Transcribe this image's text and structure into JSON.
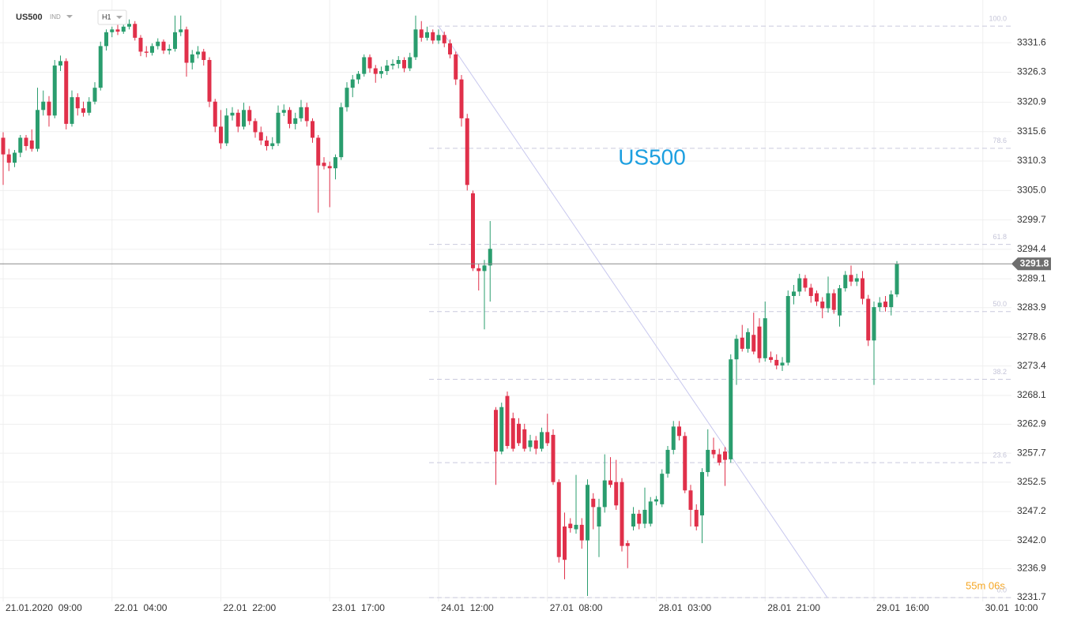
{
  "chart_data": {
    "type": "candlestick",
    "symbol": "US500",
    "market_tag": "IND",
    "interval": "H1",
    "timer": "55m 06s",
    "up_color": "#2a9d6e",
    "down_color": "#e0304a",
    "ylim": [
      3231.0,
      3339.3
    ],
    "yticks": [
      3331.6,
      3326.3,
      3320.9,
      3315.6,
      3310.3,
      {
        "value": 3305,
        "label": "3305.0"
      },
      3299.7,
      3294.4,
      3289.1,
      3283.9,
      3278.6,
      3273.4,
      3268.1,
      3262.9,
      3257.7,
      3252.5,
      3247.2,
      {
        "value": 3242,
        "label": "3242.0"
      },
      3236.9,
      3231.7
    ],
    "grid": true,
    "fib_levels": [
      {
        "value": 3334.6,
        "label": "100.0"
      },
      {
        "value": 3312.6,
        "label": "78.6"
      },
      {
        "value": 3295.3,
        "label": "61.8"
      },
      {
        "value": 3283.2,
        "label": "50.0"
      },
      {
        "value": 3271.0,
        "label": "38.2"
      },
      {
        "value": 3256.0,
        "label": "23.6"
      },
      {
        "value": 3231.7,
        "label": "0.0"
      }
    ],
    "categories": [
      "21.01.2020  09:00",
      null,
      null,
      null,
      null,
      null,
      null,
      null,
      null,
      null,
      null,
      null,
      null,
      null,
      null,
      null,
      null,
      null,
      null,
      "22.01  04:00",
      null,
      null,
      null,
      null,
      null,
      null,
      null,
      null,
      null,
      null,
      null,
      null,
      null,
      null,
      null,
      null,
      null,
      null,
      "22.01  22:00",
      null,
      null,
      null,
      null,
      null,
      null,
      null,
      null,
      null,
      null,
      null,
      null,
      null,
      null,
      null,
      null,
      null,
      null,
      "23.01  17:00",
      null,
      null,
      null,
      null,
      null,
      null,
      null,
      null,
      null,
      null,
      null,
      null,
      null,
      null,
      null,
      null,
      null,
      null,
      "24.01  12:00",
      null,
      null,
      null,
      null,
      null,
      null,
      null,
      null,
      null,
      null,
      null,
      null,
      null,
      null,
      null,
      null,
      null,
      null,
      "27.01  08:00",
      null,
      null,
      null,
      null,
      null,
      null,
      null,
      null,
      null,
      null,
      null,
      null,
      null,
      null,
      null,
      null,
      null,
      null,
      "28.01  03:00",
      null,
      null,
      null,
      null,
      null,
      null,
      null,
      null,
      null,
      null,
      null,
      null,
      null,
      null,
      null,
      null,
      null,
      null,
      "28.01  21:00",
      null,
      null,
      null,
      null,
      null,
      null,
      null,
      null,
      null,
      null,
      null,
      null,
      null,
      null,
      null,
      null,
      null,
      null,
      "29.01  16:00",
      null,
      null,
      null,
      null,
      null,
      null,
      null,
      null,
      null,
      null,
      null,
      null,
      null,
      null,
      null,
      null,
      null,
      null,
      "30.01  10:00"
    ],
    "open": [
      3314.5,
      3311.5,
      3310.0,
      3311.8,
      3314.5,
      3314.0,
      3312.5,
      3319.5,
      3321.0,
      3318.5,
      3327.5,
      3328.3,
      3317.0,
      3321.8,
      3319.8,
      3319.0,
      3321.0,
      3323.5,
      3331.0,
      3333.5,
      3334.0,
      3333.6,
      3334.5,
      3335.0,
      3332.5,
      3330.0,
      3329.8,
      3331.0,
      3331.8,
      3330.2,
      3330.5,
      3333.5,
      3334.0,
      3328.0,
      3329.5,
      3330.0,
      3328.5,
      3321.0,
      3316.5,
      3313.5,
      3318.5,
      3319.0,
      3316.5,
      3319.5,
      3317.5,
      3315.5,
      3314.0,
      3313.0,
      3313.5,
      3319.0,
      3319.5,
      3317.0,
      3318.0,
      3320.0,
      3317.5,
      3314.5,
      3310.0,
      3309.4,
      3309.0,
      3311.0,
      3320.0,
      3323.5,
      3325.0,
      3326.0,
      3329.0,
      3327.0,
      3326.0,
      3326.5,
      3327.5,
      3327.8,
      3328.5,
      3327.0,
      3329.0,
      3334.0,
      3332.5,
      3333.5,
      3332.0,
      3333.0,
      3331.5,
      3329.5,
      3325.0,
      3318.0,
      3304.5,
      3291.0,
      3290.5,
      3291.5,
      3265.5,
      3258.0,
      3268.0,
      3264.0,
      3263.0,
      3262.0,
      3258.8,
      3260.0,
      3258.5,
      3261.5,
      3261.0,
      3252.5,
      3244.5,
      3245.0,
      3244.0,
      3244.8,
      3242.0,
      3249.5,
      3244.5,
      3248.0,
      3252.8,
      3252.5,
      3252.5,
      3241.5,
      3244.5,
      3246.8,
      3245.0,
      3245.0,
      3249.0,
      3248.5,
      3254.0,
      3258.3,
      3262.5,
      3260.8,
      3251.0,
      3247.5,
      3246.5,
      3254.3,
      3258.3,
      3257.5,
      3258.0,
      3256.6,
      3274.6,
      3278.5,
      3276.5,
      3279.0,
      3280.5,
      3274.8,
      3275.0,
      3274.5,
      3273.5,
      3274.0,
      3286.0,
      3286.8,
      3289.2,
      3287.5,
      3286.5,
      3285.0,
      3283.8,
      3286.5,
      3282.5,
      3287.4,
      3289.8,
      3288.6,
      3289.2,
      3285.5,
      3278.0,
      3284.0,
      3285.0,
      3284.0,
      3286.3,
      null,
      null,
      null,
      null,
      null,
      null,
      null,
      null,
      null,
      null,
      null,
      null,
      null,
      null,
      null
    ],
    "high": [
      3315.5,
      3312.5,
      3312.3,
      3315.0,
      3315.0,
      3316.0,
      3323.5,
      3323.0,
      3322.0,
      3328.5,
      3329.3,
      3328.8,
      3323.0,
      3322.5,
      3321.0,
      3321.8,
      3324.5,
      3331.8,
      3334.0,
      3334.5,
      3334.8,
      3335.0,
      3335.8,
      3335.5,
      3333.0,
      3331.0,
      3331.5,
      3332.4,
      3332.2,
      3331.3,
      3336.5,
      3336.5,
      3334.5,
      3330.3,
      3331.0,
      3330.5,
      3329.0,
      3321.5,
      3319.5,
      3319.8,
      3320.0,
      3319.6,
      3320.8,
      3320.2,
      3318.0,
      3316.5,
      3314.8,
      3314.6,
      3320.3,
      3320.5,
      3320.0,
      3319.0,
      3321.3,
      3320.8,
      3318.0,
      3315.0,
      3311.0,
      3310.2,
      3311.5,
      3320.8,
      3324.5,
      3325.8,
      3326.5,
      3329.5,
      3329.5,
      3327.6,
      3327.3,
      3328.5,
      3328.6,
      3329.2,
      3329.0,
      3329.8,
      3336.5,
      3335.5,
      3334.5,
      3334.0,
      3334.0,
      3333.6,
      3332.2,
      3330.0,
      3325.8,
      3318.8,
      3305.0,
      3291.8,
      3292.5,
      3299.5,
      3266.0,
      3266.8,
      3268.8,
      3265.0,
      3264.0,
      3263.0,
      3261.0,
      3260.8,
      3262.3,
      3264.8,
      3262.0,
      3253.0,
      3247.0,
      3246.0,
      3253.8,
      3246.0,
      3253.0,
      3250.5,
      3249.5,
      3257.5,
      3257.0,
      3256.5,
      3253.2,
      3242.0,
      3248.0,
      3247.5,
      3251.5,
      3249.8,
      3250.0,
      3254.8,
      3259.0,
      3263.5,
      3263.5,
      3261.5,
      3252.0,
      3248.5,
      3255.0,
      3262.0,
      3260.5,
      3258.5,
      3258.8,
      3275.5,
      3279.0,
      3280.8,
      3280.2,
      3283.0,
      3282.0,
      3285.0,
      3276.0,
      3275.5,
      3275.0,
      3287.0,
      3288.0,
      3290.0,
      3289.8,
      3288.2,
      3287.0,
      3285.8,
      3289.5,
      3287.2,
      3288.0,
      3290.5,
      3291.5,
      3290.0,
      3290.5,
      3286.2,
      3285.0,
      3285.8,
      3286.0,
      3287.0,
      3292.3,
      null,
      null,
      null,
      null,
      null,
      null,
      null,
      null,
      null,
      null,
      null,
      null,
      null,
      null,
      null
    ],
    "low": [
      3306.0,
      3308.5,
      3309.2,
      3311.0,
      3312.2,
      3312.0,
      3312.0,
      3318.5,
      3316.5,
      3318.0,
      3326.5,
      3316.0,
      3316.5,
      3318.5,
      3318.3,
      3318.5,
      3320.5,
      3323.0,
      3330.2,
      3332.6,
      3333.0,
      3333.2,
      3334.0,
      3332.0,
      3329.2,
      3329.0,
      3329.3,
      3330.4,
      3329.6,
      3329.5,
      3330.0,
      3332.8,
      3325.5,
      3326.8,
      3328.8,
      3327.5,
      3320.0,
      3315.5,
      3312.5,
      3313.0,
      3317.6,
      3315.5,
      3316.0,
      3316.8,
      3314.5,
      3313.2,
      3312.2,
      3312.4,
      3313.0,
      3318.4,
      3316.2,
      3316.0,
      3317.4,
      3316.5,
      3313.6,
      3301.0,
      3308.8,
      3302.0,
      3307.0,
      3310.5,
      3319.2,
      3321.8,
      3324.2,
      3325.5,
      3326.2,
      3324.4,
      3325.2,
      3325.8,
      3326.8,
      3327.0,
      3326.3,
      3326.5,
      3328.5,
      3331.8,
      3332.0,
      3331.4,
      3331.4,
      3330.8,
      3328.8,
      3324.0,
      3316.5,
      3305.0,
      3290.5,
      3287.0,
      3280.0,
      3285.0,
      3252.0,
      3257.5,
      3258.5,
      3258.0,
      3259.0,
      3258.0,
      3258.0,
      3257.5,
      3258.0,
      3259.0,
      3252.0,
      3238.0,
      3235.0,
      3243.4,
      3243.2,
      3240.5,
      3232.0,
      3244.0,
      3239.0,
      3247.0,
      3251.5,
      3247.5,
      3240.0,
      3237.0,
      3243.8,
      3244.0,
      3244.2,
      3244.5,
      3248.3,
      3248.0,
      3253.3,
      3257.5,
      3260.0,
      3250.5,
      3244.5,
      3243.8,
      3241.5,
      3253.5,
      3256.8,
      3255.5,
      3251.8,
      3256.0,
      3270.0,
      3276.0,
      3275.8,
      3275.5,
      3274.0,
      3274.2,
      3274.0,
      3272.8,
      3272.5,
      3273.5,
      3284.5,
      3286.0,
      3286.8,
      3284.8,
      3284.2,
      3282.0,
      3283.0,
      3282.8,
      3280.5,
      3286.8,
      3287.8,
      3287.8,
      3284.5,
      3277.0,
      3270.0,
      3283.2,
      3283.2,
      3282.5,
      3285.8,
      null,
      null,
      null,
      null,
      null,
      null,
      null,
      null,
      null,
      null,
      null,
      null,
      null,
      null,
      null
    ],
    "close": [
      3311.5,
      3310.0,
      3311.8,
      3314.5,
      3313.0,
      3312.5,
      3319.5,
      3321.0,
      3318.5,
      3327.5,
      3328.3,
      3317.0,
      3321.8,
      3319.8,
      3319.0,
      3321.0,
      3323.5,
      3331.0,
      3333.5,
      3334.0,
      3333.6,
      3334.5,
      3335.0,
      3332.5,
      3330.0,
      3329.8,
      3331.0,
      3331.8,
      3330.2,
      3330.5,
      3333.5,
      3334.0,
      3328.0,
      3329.5,
      3330.0,
      3328.5,
      3321.0,
      3316.5,
      3313.5,
      3318.5,
      3319.0,
      3316.5,
      3319.5,
      3317.5,
      3315.5,
      3314.0,
      3313.0,
      3313.5,
      3319.0,
      3319.5,
      3317.0,
      3318.0,
      3320.0,
      3317.5,
      3314.5,
      3309.5,
      3309.4,
      3309.0,
      3311.0,
      3320.0,
      3323.5,
      3325.0,
      3326.0,
      3329.0,
      3327.0,
      3326.0,
      3326.5,
      3327.5,
      3327.8,
      3328.5,
      3327.0,
      3329.0,
      3334.0,
      3332.5,
      3333.5,
      3332.0,
      3333.0,
      3331.5,
      3329.5,
      3325.0,
      3318.0,
      3306.0,
      3291.0,
      3290.5,
      3291.5,
      3294.5,
      3258.0,
      3266.0,
      3259.0,
      3258.5,
      3259.5,
      3258.5,
      3260.0,
      3258.5,
      3261.5,
      3259.5,
      3252.5,
      3239.0,
      3238.5,
      3244.2,
      3244.8,
      3242.0,
      3252.0,
      3248.0,
      3248.0,
      3252.8,
      3252.0,
      3248.3,
      3241.0,
      3241.0,
      3246.8,
      3245.0,
      3247.5,
      3249.0,
      3249.4,
      3254.0,
      3258.3,
      3262.5,
      3260.8,
      3251.0,
      3247.5,
      3244.5,
      3254.3,
      3258.3,
      3257.5,
      3256.0,
      3256.5,
      3274.6,
      3278.3,
      3276.5,
      3279.5,
      3276.0,
      3274.8,
      3282.0,
      3274.5,
      3273.5,
      3274.0,
      3286.0,
      3286.8,
      3289.2,
      3287.5,
      3286.0,
      3285.0,
      3283.8,
      3286.5,
      3283.5,
      3287.4,
      3289.8,
      3288.6,
      3289.2,
      3285.5,
      3278.0,
      3284.0,
      3284.8,
      3284.0,
      3286.3,
      3291.8,
      null,
      null,
      null,
      null,
      null,
      null,
      null,
      null,
      null,
      null,
      null,
      null,
      null,
      null,
      null
    ]
  }
}
